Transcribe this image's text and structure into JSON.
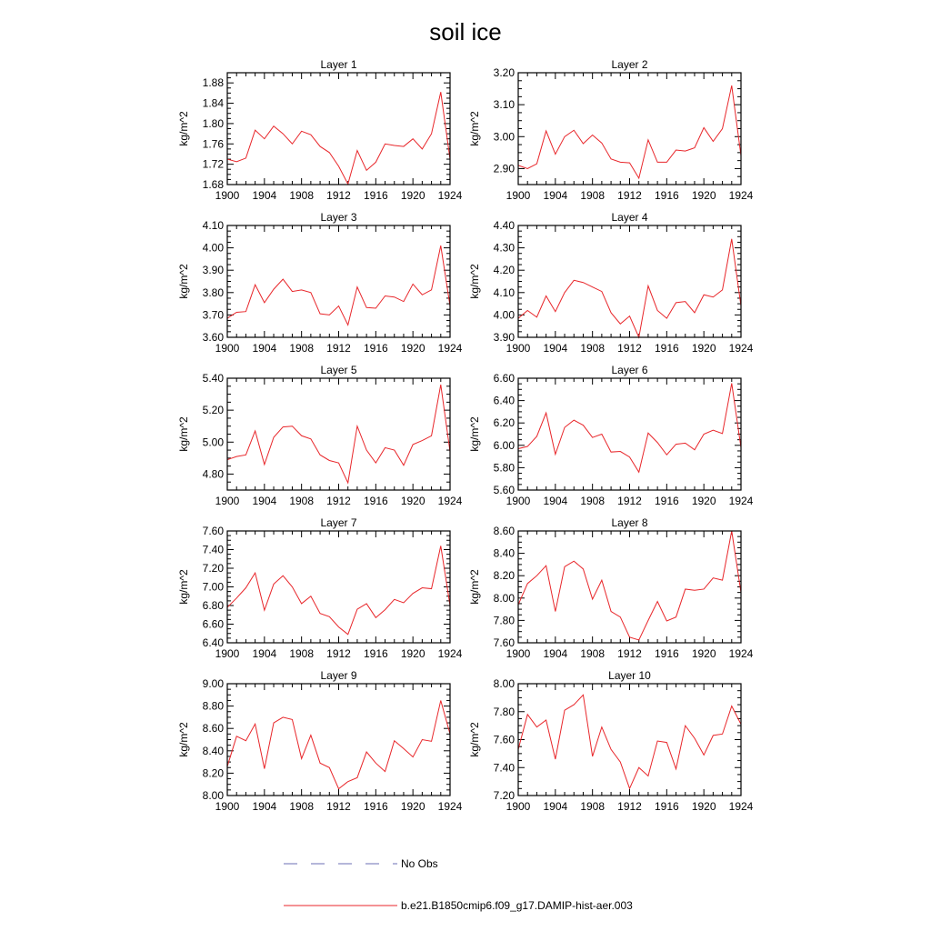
{
  "figure": {
    "title": "soil ice",
    "legend": {
      "placement": "bottom-center",
      "entries": [
        {
          "label": "No Obs",
          "color": "#6b6fb5",
          "style": "dashed"
        },
        {
          "label": "b.e21.B1850cmip6.f09_g17.DAMIP-hist-aer.003",
          "color": "#e8262a",
          "style": "solid"
        }
      ]
    }
  },
  "chart_data": [
    {
      "type": "line",
      "title": "Layer 1",
      "ylabel": "kg/m^2",
      "xlim": [
        1900,
        1924
      ],
      "ylim": [
        1.68,
        1.9
      ],
      "yticks": [
        "1.68",
        "1.72",
        "1.76",
        "1.80",
        "1.84",
        "1.88"
      ],
      "xticks": [
        "1900",
        "1904",
        "1908",
        "1912",
        "1916",
        "1920",
        "1924"
      ],
      "x": [
        1900,
        1901,
        1902,
        1903,
        1904,
        1905,
        1906,
        1907,
        1908,
        1909,
        1910,
        1911,
        1912,
        1913,
        1914,
        1915,
        1916,
        1917,
        1918,
        1919,
        1920,
        1921,
        1922,
        1923,
        1924
      ],
      "series": [
        {
          "name": "b.e21.B1850cmip6.f09_g17.DAMIP-hist-aer.003",
          "color": "#e8262a",
          "values": [
            1.73,
            1.725,
            1.732,
            1.787,
            1.77,
            1.795,
            1.78,
            1.76,
            1.785,
            1.778,
            1.755,
            1.743,
            1.716,
            1.681,
            1.747,
            1.708,
            1.724,
            1.76,
            1.757,
            1.755,
            1.77,
            1.75,
            1.78,
            1.862,
            1.73
          ]
        }
      ]
    },
    {
      "type": "line",
      "title": "Layer 2",
      "ylabel": "kg/m^2",
      "xlim": [
        1900,
        1924
      ],
      "ylim": [
        2.85,
        3.2
      ],
      "yticks": [
        "2.90",
        "3.00",
        "3.10",
        "3.20"
      ],
      "xticks": [
        "1900",
        "1904",
        "1908",
        "1912",
        "1916",
        "1920",
        "1924"
      ],
      "x": [
        1900,
        1901,
        1902,
        1903,
        1904,
        1905,
        1906,
        1907,
        1908,
        1909,
        1910,
        1911,
        1912,
        1913,
        1914,
        1915,
        1916,
        1917,
        1918,
        1919,
        1920,
        1921,
        1922,
        1923,
        1924
      ],
      "series": [
        {
          "name": "b.e21.B1850cmip6.f09_g17.DAMIP-hist-aer.003",
          "color": "#e8262a",
          "values": [
            2.91,
            2.9,
            2.915,
            3.018,
            2.945,
            3.0,
            3.02,
            2.978,
            3.005,
            2.98,
            2.93,
            2.92,
            2.918,
            2.87,
            2.99,
            2.92,
            2.92,
            2.958,
            2.955,
            2.965,
            3.028,
            2.985,
            3.025,
            3.16,
            2.94
          ]
        }
      ]
    },
    {
      "type": "line",
      "title": "Layer 3",
      "ylabel": "kg/m^2",
      "xlim": [
        1900,
        1924
      ],
      "ylim": [
        3.6,
        4.1
      ],
      "yticks": [
        "3.60",
        "3.70",
        "3.80",
        "3.90",
        "4.00",
        "4.10"
      ],
      "xticks": [
        "1900",
        "1904",
        "1908",
        "1912",
        "1916",
        "1920",
        "1924"
      ],
      "x": [
        1900,
        1901,
        1902,
        1903,
        1904,
        1905,
        1906,
        1907,
        1908,
        1909,
        1910,
        1911,
        1912,
        1913,
        1914,
        1915,
        1916,
        1917,
        1918,
        1919,
        1920,
        1921,
        1922,
        1923,
        1924
      ],
      "series": [
        {
          "name": "b.e21.B1850cmip6.f09_g17.DAMIP-hist-aer.003",
          "color": "#e8262a",
          "values": [
            3.685,
            3.712,
            3.715,
            3.835,
            3.755,
            3.815,
            3.86,
            3.805,
            3.812,
            3.8,
            3.705,
            3.7,
            3.74,
            3.655,
            3.825,
            3.733,
            3.73,
            3.785,
            3.78,
            3.76,
            3.838,
            3.79,
            3.812,
            4.01,
            3.74
          ]
        }
      ]
    },
    {
      "type": "line",
      "title": "Layer 4",
      "ylabel": "kg/m^2",
      "xlim": [
        1900,
        1924
      ],
      "ylim": [
        3.9,
        4.4
      ],
      "yticks": [
        "3.90",
        "4.00",
        "4.10",
        "4.20",
        "4.30",
        "4.40"
      ],
      "xticks": [
        "1900",
        "1904",
        "1908",
        "1912",
        "1916",
        "1920",
        "1924"
      ],
      "x": [
        1900,
        1901,
        1902,
        1903,
        1904,
        1905,
        1906,
        1907,
        1908,
        1909,
        1910,
        1911,
        1912,
        1913,
        1914,
        1915,
        1916,
        1917,
        1918,
        1919,
        1920,
        1921,
        1922,
        1923,
        1924
      ],
      "series": [
        {
          "name": "b.e21.B1850cmip6.f09_g17.DAMIP-hist-aer.003",
          "color": "#e8262a",
          "values": [
            3.985,
            4.02,
            3.99,
            4.085,
            4.015,
            4.1,
            4.155,
            4.145,
            4.125,
            4.105,
            4.01,
            3.96,
            3.995,
            3.9,
            4.13,
            4.02,
            3.985,
            4.055,
            4.06,
            4.01,
            4.09,
            4.08,
            4.112,
            4.34,
            4.04
          ]
        }
      ]
    },
    {
      "type": "line",
      "title": "Layer 5",
      "ylabel": "kg/m^2",
      "xlim": [
        1900,
        1924
      ],
      "ylim": [
        4.7,
        5.4
      ],
      "yticks": [
        "4.80",
        "5.00",
        "5.20",
        "5.40"
      ],
      "xticks": [
        "1900",
        "1904",
        "1908",
        "1912",
        "1916",
        "1920",
        "1924"
      ],
      "x": [
        1900,
        1901,
        1902,
        1903,
        1904,
        1905,
        1906,
        1907,
        1908,
        1909,
        1910,
        1911,
        1912,
        1913,
        1914,
        1915,
        1916,
        1917,
        1918,
        1919,
        1920,
        1921,
        1922,
        1923,
        1924
      ],
      "series": [
        {
          "name": "b.e21.B1850cmip6.f09_g17.DAMIP-hist-aer.003",
          "color": "#e8262a",
          "values": [
            4.89,
            4.91,
            4.92,
            5.07,
            4.86,
            5.03,
            5.095,
            5.1,
            5.04,
            5.02,
            4.92,
            4.885,
            4.87,
            4.745,
            5.1,
            4.95,
            4.87,
            4.965,
            4.95,
            4.855,
            4.985,
            5.01,
            5.04,
            5.36,
            4.94
          ]
        }
      ]
    },
    {
      "type": "line",
      "title": "Layer 6",
      "ylabel": "kg/m^2",
      "xlim": [
        1900,
        1924
      ],
      "ylim": [
        5.6,
        6.6
      ],
      "yticks": [
        "5.60",
        "5.80",
        "6.00",
        "6.20",
        "6.40",
        "6.60"
      ],
      "xticks": [
        "1900",
        "1904",
        "1908",
        "1912",
        "1916",
        "1920",
        "1924"
      ],
      "x": [
        1900,
        1901,
        1902,
        1903,
        1904,
        1905,
        1906,
        1907,
        1908,
        1909,
        1910,
        1911,
        1912,
        1913,
        1914,
        1915,
        1916,
        1917,
        1918,
        1919,
        1920,
        1921,
        1922,
        1923,
        1924
      ],
      "series": [
        {
          "name": "b.e21.B1850cmip6.f09_g17.DAMIP-hist-aer.003",
          "color": "#e8262a",
          "values": [
            5.97,
            5.99,
            6.08,
            6.29,
            5.92,
            6.16,
            6.225,
            6.18,
            6.07,
            6.1,
            5.94,
            5.945,
            5.895,
            5.76,
            6.11,
            6.025,
            5.915,
            6.01,
            6.02,
            5.96,
            6.1,
            6.135,
            6.105,
            6.555,
            5.98
          ]
        }
      ]
    },
    {
      "type": "line",
      "title": "Layer 7",
      "ylabel": "kg/m^2",
      "xlim": [
        1900,
        1924
      ],
      "ylim": [
        6.4,
        7.6
      ],
      "yticks": [
        "6.40",
        "6.60",
        "6.80",
        "7.00",
        "7.20",
        "7.40",
        "7.60"
      ],
      "xticks": [
        "1900",
        "1904",
        "1908",
        "1912",
        "1916",
        "1920",
        "1924"
      ],
      "x": [
        1900,
        1901,
        1902,
        1903,
        1904,
        1905,
        1906,
        1907,
        1908,
        1909,
        1910,
        1911,
        1912,
        1913,
        1914,
        1915,
        1916,
        1917,
        1918,
        1919,
        1920,
        1921,
        1922,
        1923,
        1924
      ],
      "series": [
        {
          "name": "b.e21.B1850cmip6.f09_g17.DAMIP-hist-aer.003",
          "color": "#e8262a",
          "values": [
            6.78,
            6.88,
            6.99,
            7.15,
            6.75,
            7.03,
            7.12,
            7.0,
            6.82,
            6.9,
            6.715,
            6.68,
            6.57,
            6.49,
            6.76,
            6.82,
            6.67,
            6.755,
            6.865,
            6.83,
            6.93,
            6.99,
            6.98,
            7.44,
            6.8
          ]
        }
      ]
    },
    {
      "type": "line",
      "title": "Layer 8",
      "ylabel": "kg/m^2",
      "xlim": [
        1900,
        1924
      ],
      "ylim": [
        7.6,
        8.6
      ],
      "yticks": [
        "7.60",
        "7.80",
        "8.00",
        "8.20",
        "8.40",
        "8.60"
      ],
      "xticks": [
        "1900",
        "1904",
        "1908",
        "1912",
        "1916",
        "1920",
        "1924"
      ],
      "x": [
        1900,
        1901,
        1902,
        1903,
        1904,
        1905,
        1906,
        1907,
        1908,
        1909,
        1910,
        1911,
        1912,
        1913,
        1914,
        1915,
        1916,
        1917,
        1918,
        1919,
        1920,
        1921,
        1922,
        1923,
        1924
      ],
      "series": [
        {
          "name": "b.e21.B1850cmip6.f09_g17.DAMIP-hist-aer.003",
          "color": "#e8262a",
          "values": [
            7.94,
            8.13,
            8.2,
            8.29,
            7.88,
            8.28,
            8.33,
            8.26,
            7.99,
            8.16,
            7.88,
            7.83,
            7.65,
            7.625,
            7.8,
            7.97,
            7.795,
            7.83,
            8.08,
            8.07,
            8.08,
            8.18,
            8.16,
            8.6,
            8.05
          ]
        }
      ]
    },
    {
      "type": "line",
      "title": "Layer 9",
      "ylabel": "kg/m^2",
      "xlim": [
        1900,
        1924
      ],
      "ylim": [
        8.0,
        9.0
      ],
      "yticks": [
        "8.00",
        "8.20",
        "8.40",
        "8.60",
        "8.80",
        "9.00"
      ],
      "xticks": [
        "1900",
        "1904",
        "1908",
        "1912",
        "1916",
        "1920",
        "1924"
      ],
      "x": [
        1900,
        1901,
        1902,
        1903,
        1904,
        1905,
        1906,
        1907,
        1908,
        1909,
        1910,
        1911,
        1912,
        1913,
        1914,
        1915,
        1916,
        1917,
        1918,
        1919,
        1920,
        1921,
        1922,
        1923,
        1924
      ],
      "series": [
        {
          "name": "b.e21.B1850cmip6.f09_g17.DAMIP-hist-aer.003",
          "color": "#e8262a",
          "values": [
            8.26,
            8.53,
            8.49,
            8.64,
            8.24,
            8.65,
            8.7,
            8.68,
            8.33,
            8.54,
            8.29,
            8.25,
            8.06,
            8.125,
            8.16,
            8.39,
            8.29,
            8.215,
            8.49,
            8.42,
            8.345,
            8.5,
            8.485,
            8.85,
            8.55
          ]
        }
      ]
    },
    {
      "type": "line",
      "title": "Layer 10",
      "ylabel": "kg/m^2",
      "xlim": [
        1900,
        1924
      ],
      "ylim": [
        7.2,
        8.0
      ],
      "yticks": [
        "7.20",
        "7.40",
        "7.60",
        "7.80",
        "8.00"
      ],
      "xticks": [
        "1900",
        "1904",
        "1908",
        "1912",
        "1916",
        "1920",
        "1924"
      ],
      "x": [
        1900,
        1901,
        1902,
        1903,
        1904,
        1905,
        1906,
        1907,
        1908,
        1909,
        1910,
        1911,
        1912,
        1913,
        1914,
        1915,
        1916,
        1917,
        1918,
        1919,
        1920,
        1921,
        1922,
        1923,
        1924
      ],
      "series": [
        {
          "name": "b.e21.B1850cmip6.f09_g17.DAMIP-hist-aer.003",
          "color": "#e8262a",
          "values": [
            7.53,
            7.78,
            7.69,
            7.74,
            7.46,
            7.81,
            7.85,
            7.92,
            7.48,
            7.69,
            7.53,
            7.44,
            7.25,
            7.4,
            7.34,
            7.59,
            7.58,
            7.39,
            7.7,
            7.61,
            7.49,
            7.63,
            7.64,
            7.84,
            7.71
          ]
        }
      ]
    }
  ]
}
